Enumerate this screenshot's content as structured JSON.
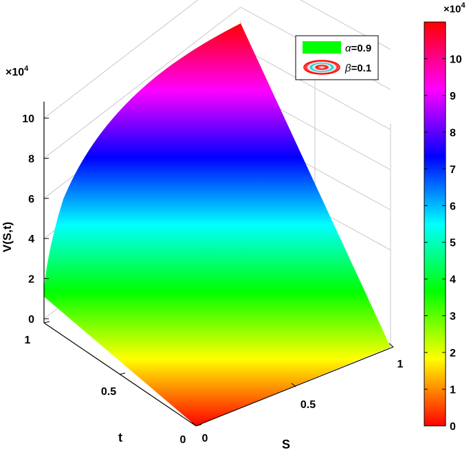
{
  "chart_data": {
    "type": "surface",
    "title": "",
    "zlabel": "V(S,t)",
    "xlabel": "S",
    "ylabel": "t",
    "z_exponent_label": "×10",
    "z_exponent_power": "4",
    "zlim": [
      0,
      110000
    ],
    "z_ticks": [
      0,
      2,
      4,
      6,
      8,
      10
    ],
    "x_ticks": [
      "0",
      "0.5",
      "1"
    ],
    "y_ticks": [
      "0",
      "0.5",
      "1"
    ],
    "colorbar": {
      "exponent_label": "×10",
      "exponent_power": "4",
      "ticks": [
        0,
        1,
        2,
        3,
        4,
        5,
        6,
        7,
        8,
        9,
        10
      ],
      "range": [
        0,
        110000
      ],
      "colormap": [
        "#ff0000",
        "#ffff00",
        "#00ff00",
        "#00ffff",
        "#0000ff",
        "#ff00ff",
        "#ff0000"
      ]
    },
    "legend": {
      "placement": "top-right",
      "entries": [
        {
          "symbol": "α",
          "text": "=0.9",
          "color": "#00ff00"
        },
        {
          "symbol": "β",
          "text": "=0.1",
          "color": "#ff0000"
        }
      ]
    },
    "surface_profile": {
      "t_edge_at_S0": [
        0,
        11000
      ],
      "back_curve_max": 110000
    }
  }
}
